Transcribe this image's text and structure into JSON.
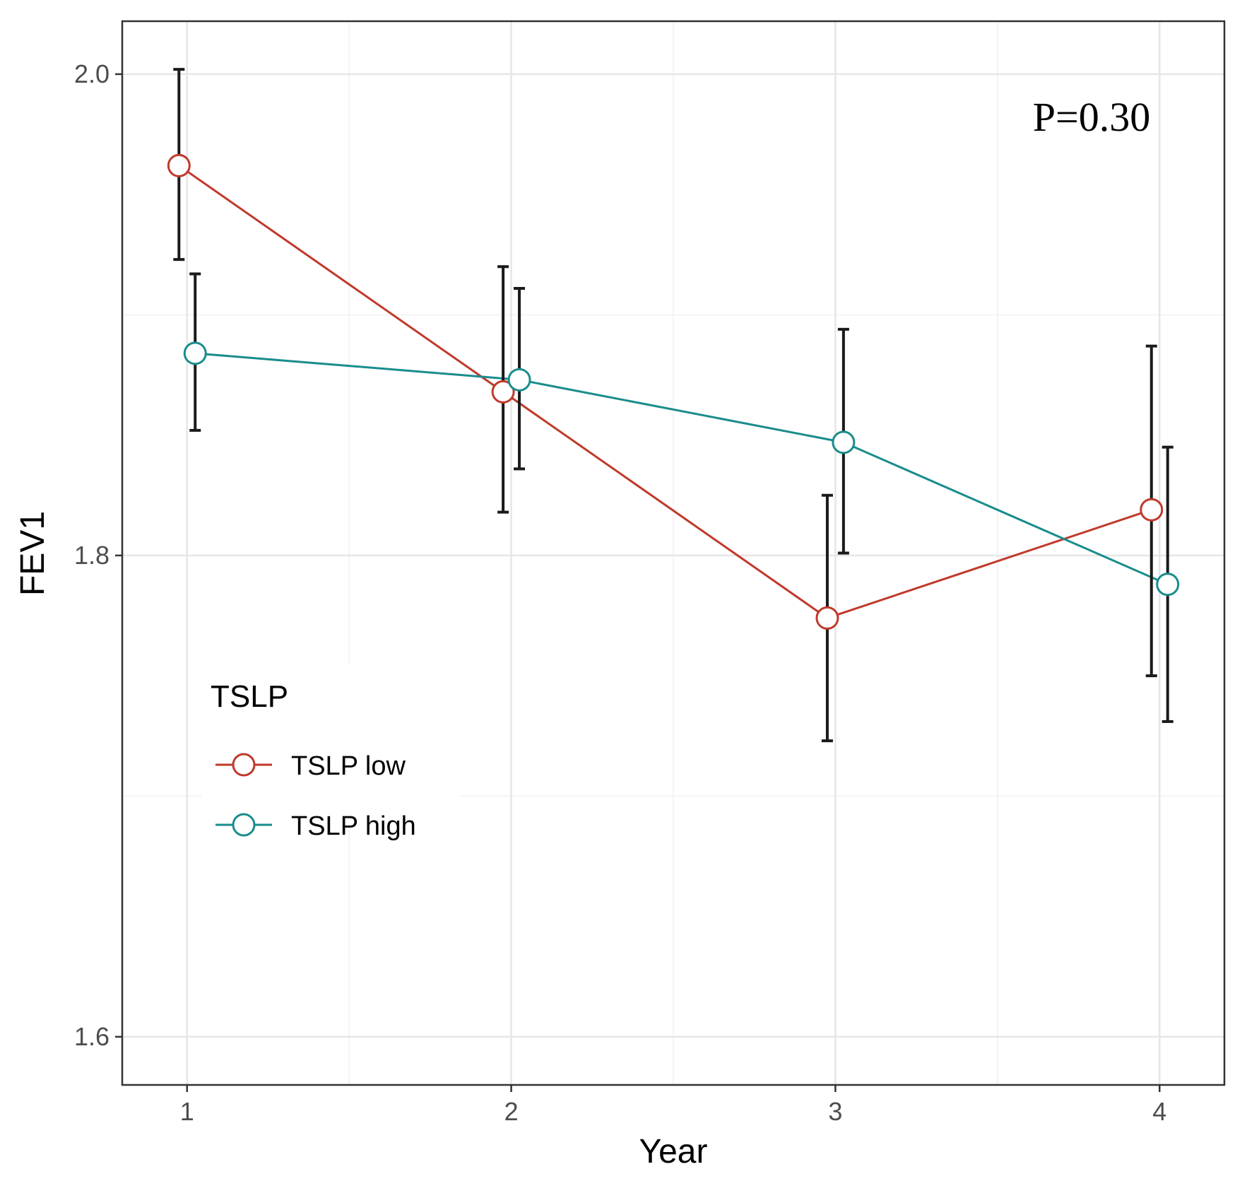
{
  "chart_data": {
    "type": "line",
    "title": "",
    "xlabel": "Year",
    "ylabel": "FEV1",
    "x": [
      1,
      2,
      3,
      4
    ],
    "xticks": [
      "1",
      "2",
      "3",
      "4"
    ],
    "yticks": [
      "1.6",
      "1.8",
      "2.0"
    ],
    "ytick_values": [
      1.6,
      1.8,
      2.0
    ],
    "xlim": [
      0.8,
      4.2
    ],
    "ylim": [
      1.58,
      2.022
    ],
    "grid": true,
    "annotation": "P=0.30",
    "legend": {
      "title": "TSLP",
      "position": "left-middle",
      "entries": [
        "TSLP low",
        "TSLP high"
      ]
    },
    "series": [
      {
        "name": "TSLP low",
        "color": "#c0392b",
        "x_offset": -0.025,
        "values": [
          1.962,
          1.868,
          1.774,
          1.819
        ],
        "lower": [
          1.923,
          1.818,
          1.723,
          1.75
        ],
        "upper": [
          2.002,
          1.92,
          1.825,
          1.887
        ]
      },
      {
        "name": "TSLP high",
        "color": "#1a8c8c",
        "x_offset": 0.025,
        "values": [
          1.884,
          1.873,
          1.847,
          1.788
        ],
        "lower": [
          1.852,
          1.836,
          1.801,
          1.731
        ],
        "upper": [
          1.917,
          1.911,
          1.894,
          1.845
        ]
      }
    ]
  }
}
